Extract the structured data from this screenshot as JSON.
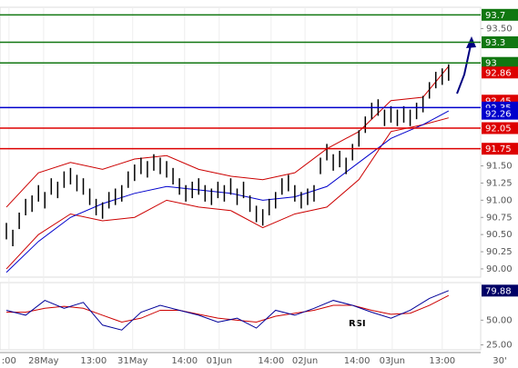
{
  "chart_data": {
    "type": "ohlc",
    "xlim": [
      -1,
      74
    ],
    "xticks": [
      {
        "value": 0.4,
        "label": ":00"
      },
      {
        "value": 5.8,
        "label": "28May"
      },
      {
        "value": 13.6,
        "label": "13:00"
      },
      {
        "value": 19.7,
        "label": "31May"
      },
      {
        "value": 27.8,
        "label": "14:00"
      },
      {
        "value": 33.2,
        "label": "01Jun"
      },
      {
        "value": 41.3,
        "label": "14:00"
      },
      {
        "value": 46.6,
        "label": "02Jun"
      },
      {
        "value": 54.7,
        "label": "14:00"
      },
      {
        "value": 60.2,
        "label": "03Jun"
      },
      {
        "value": 68,
        "label": "13:00"
      }
    ],
    "timeframe": "30'",
    "ylim": [
      89.88,
      93.81
    ],
    "yticks": [
      {
        "value": 90,
        "label": "90.00"
      },
      {
        "value": 90.25,
        "label": "90.25"
      },
      {
        "value": 90.5,
        "label": "90.50"
      },
      {
        "value": 90.75,
        "label": "90.75"
      },
      {
        "value": 91,
        "label": "91.00"
      },
      {
        "value": 91.25,
        "label": "91.25"
      },
      {
        "value": 91.5,
        "label": "91.50"
      },
      {
        "value": 93.5,
        "label": "93.50"
      }
    ],
    "high": [
      90.67,
      90.57,
      90.82,
      91.02,
      91.07,
      91.22,
      91.12,
      91.32,
      91.27,
      91.42,
      91.47,
      91.37,
      91.32,
      91.17,
      91.02,
      90.97,
      91.12,
      91.17,
      91.22,
      91.42,
      91.52,
      91.62,
      91.57,
      91.67,
      91.62,
      91.57,
      91.47,
      91.32,
      91.22,
      91.27,
      91.32,
      91.22,
      91.17,
      91.27,
      91.22,
      91.32,
      91.17,
      91.27,
      91.07,
      90.92,
      90.87,
      91.02,
      91.12,
      91.32,
      91.37,
      91.22,
      91.12,
      91.17,
      91.22,
      91.62,
      91.82,
      91.67,
      91.72,
      91.62,
      91.82,
      92.02,
      92.22,
      92.42,
      92.47,
      92.32,
      92.37,
      92.32,
      92.37,
      92.32,
      92.42,
      92.52,
      92.72,
      92.87,
      92.92,
      92.98
    ],
    "low": [
      90.43,
      90.33,
      90.58,
      90.78,
      90.83,
      90.98,
      90.88,
      91.08,
      91.03,
      91.18,
      91.23,
      91.13,
      91.08,
      90.93,
      90.78,
      90.73,
      90.88,
      90.93,
      90.98,
      91.18,
      91.28,
      91.38,
      91.33,
      91.43,
      91.38,
      91.33,
      91.23,
      91.08,
      90.98,
      91.03,
      91.08,
      90.98,
      90.93,
      91.03,
      90.98,
      91.08,
      90.93,
      91.03,
      90.83,
      90.68,
      90.63,
      90.78,
      90.88,
      91.08,
      91.13,
      90.98,
      90.88,
      90.93,
      90.98,
      91.38,
      91.58,
      91.43,
      91.48,
      91.38,
      91.58,
      91.78,
      91.98,
      92.18,
      92.23,
      92.08,
      92.13,
      92.08,
      92.13,
      92.08,
      92.18,
      92.28,
      92.48,
      92.63,
      92.68,
      92.74
    ],
    "bar_color": "#000000",
    "bands": {
      "x": [
        0,
        5,
        10,
        15,
        20,
        25,
        30,
        35,
        40,
        45,
        50,
        55,
        60,
        65,
        69
      ],
      "upper": [
        90.9,
        91.4,
        91.55,
        91.45,
        91.6,
        91.65,
        91.45,
        91.35,
        91.3,
        91.4,
        91.75,
        92.0,
        92.45,
        92.5,
        92.95
      ],
      "lower": [
        90.0,
        90.5,
        90.8,
        90.7,
        90.75,
        91.0,
        90.9,
        90.85,
        90.6,
        90.8,
        90.9,
        91.3,
        92.0,
        92.1,
        92.2
      ],
      "ma": [
        89.95,
        90.4,
        90.75,
        90.95,
        91.1,
        91.2,
        91.15,
        91.1,
        91.0,
        91.05,
        91.2,
        91.55,
        91.9,
        92.1,
        92.3
      ],
      "band_color": "#cc0000",
      "ma_color": "#0000cc"
    },
    "levels": [
      {
        "value": 93.7,
        "color": "#117711",
        "line": true
      },
      {
        "value": 93.3,
        "color": "#117711",
        "line": true
      },
      {
        "value": 93.0,
        "color": "#117711",
        "line": true
      },
      {
        "value": 92.86,
        "color": "#dd0000",
        "line": false
      },
      {
        "value": 92.45,
        "color": "#dd0000",
        "line": false
      },
      {
        "value": 92.35,
        "color": "#0000cc",
        "line": true
      },
      {
        "value": 92.26,
        "color": "#0000cc",
        "line": false
      },
      {
        "value": 92.05,
        "color": "#dd0000",
        "line": true
      },
      {
        "value": 91.75,
        "color": "#dd0000",
        "line": true
      }
    ],
    "rsi": {
      "title": "RSI",
      "ylim": [
        20,
        88
      ],
      "yticks": [
        {
          "value": 25,
          "label": "25.00"
        },
        {
          "value": 50,
          "label": "50.00"
        }
      ],
      "x": [
        0,
        3,
        6,
        9,
        12,
        15,
        18,
        21,
        24,
        27,
        30,
        33,
        36,
        39,
        42,
        45,
        48,
        51,
        54,
        57,
        60,
        63,
        66,
        69
      ],
      "values": [
        60,
        55,
        70,
        62,
        68,
        45,
        40,
        58,
        65,
        60,
        55,
        48,
        52,
        42,
        60,
        55,
        62,
        70,
        65,
        58,
        52,
        60,
        72,
        79.88
      ],
      "signal": [
        58,
        58,
        62,
        64,
        62,
        55,
        48,
        52,
        60,
        60,
        56,
        52,
        50,
        48,
        54,
        57,
        60,
        65,
        65,
        60,
        56,
        57,
        65,
        75
      ],
      "color": "#000099",
      "signal_color": "#cc0000",
      "tag_color": "#000066"
    }
  }
}
